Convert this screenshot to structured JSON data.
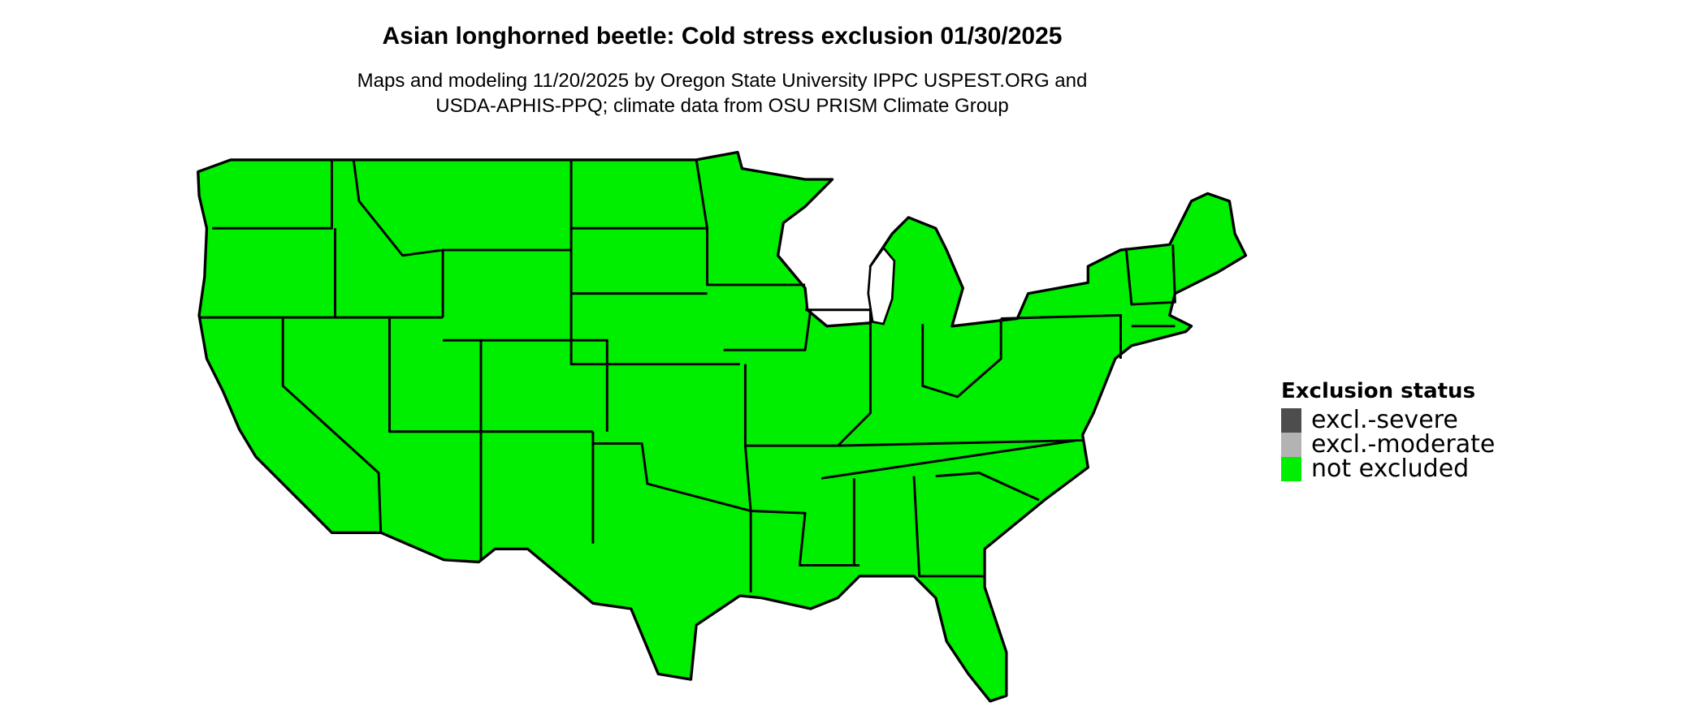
{
  "title": "Asian longhorned beetle: Cold stress exclusion 01/30/2025",
  "subtitle_line1": "Maps and modeling 11/20/2025 by Oregon State University IPPC USPEST.ORG and",
  "subtitle_line2": "USDA-APHIS-PPQ; climate data from OSU PRISM Climate Group",
  "map": {
    "region": "contiguous United States",
    "fill_status": "not excluded",
    "fill_color": "#00EE00",
    "border_color": "#000000"
  },
  "legend": {
    "title": "Exclusion status",
    "items": [
      {
        "label": "excl.-severe",
        "color": "#4D4D4D"
      },
      {
        "label": "excl.-moderate",
        "color": "#B3B3B3"
      },
      {
        "label": "not excluded",
        "color": "#00EE00"
      }
    ]
  }
}
